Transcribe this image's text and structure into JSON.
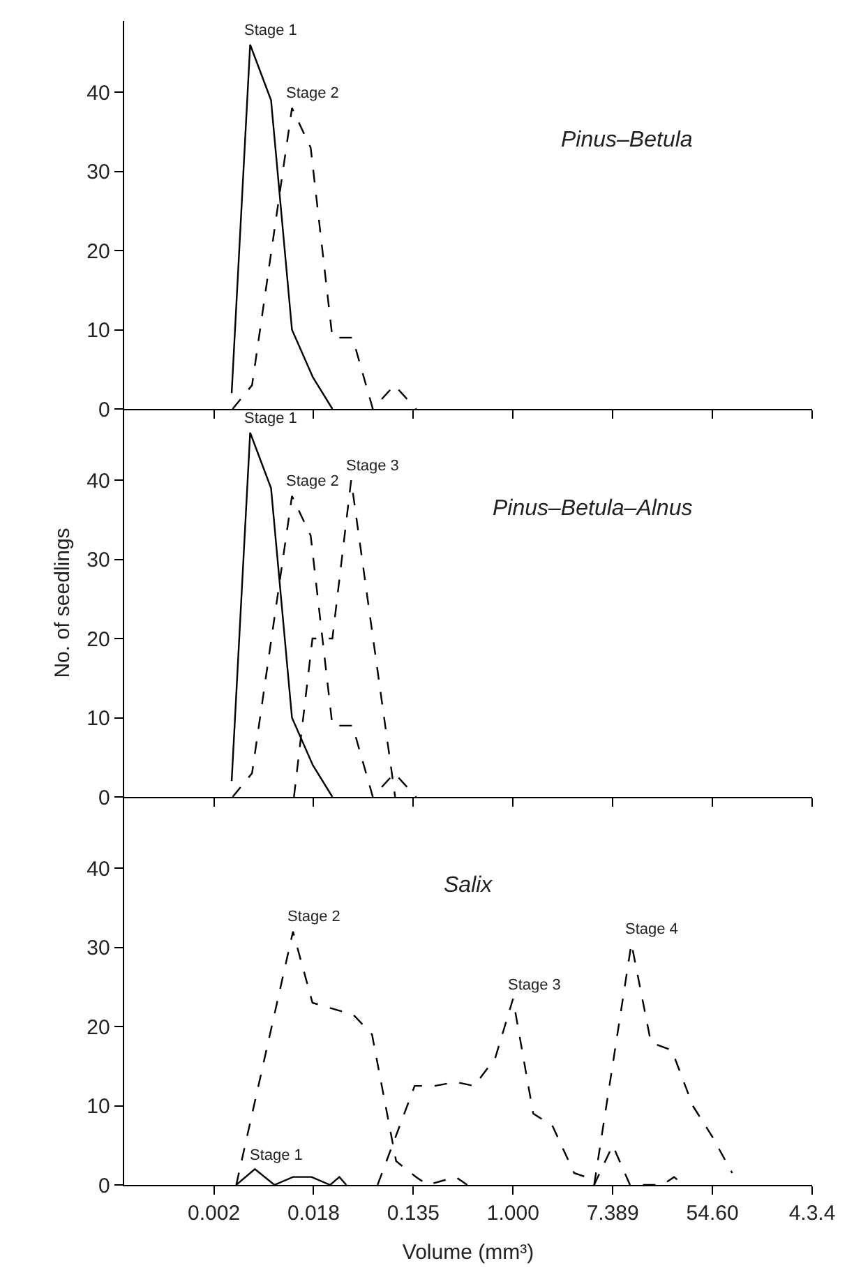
{
  "chart_data": [
    {
      "type": "line",
      "log": "x",
      "xlim": [
        0.00041,
        403.4
      ],
      "ylim": [
        0,
        49
      ],
      "tick_labels": "y",
      "xticks": [
        {
          "value": 0.00248,
          "label": null
        },
        {
          "value": 0.0183,
          "label": null
        },
        {
          "value": 0.1353,
          "label": null
        },
        {
          "value": 1,
          "label": null
        },
        {
          "value": 7.389,
          "label": null
        },
        {
          "value": 54.6,
          "label": null
        },
        {
          "value": 403.4,
          "label": null
        }
      ],
      "yticks": [
        0,
        10,
        20,
        30,
        40
      ],
      "series": [
        {
          "color": "#000000",
          "line_style": "solid",
          "x": [
            0.00354,
            0.00513,
            0.0078,
            0.01187,
            0.01806,
            0.0267
          ],
          "values": [
            2,
            46,
            39,
            10,
            4,
            0
          ]
        },
        {
          "color": "#000000",
          "line_style": "dashed",
          "x": [
            0.00361,
            0.00533,
            0.01187,
            0.01727,
            0.0267,
            0.04,
            0.0601,
            0.0926,
            0.1431
          ],
          "values": [
            0,
            3,
            38,
            33,
            9,
            9,
            0,
            3,
            0
          ]
        }
      ],
      "annotations": [
        {
          "text": "Stage 1",
          "x": 0.00513,
          "y": 46
        },
        {
          "text": "Stage 2",
          "x": 0.01187,
          "y": 38
        },
        "Pinus–Betula"
      ]
    },
    {
      "type": "line",
      "log": "x",
      "xlim": [
        0.00041,
        403.4
      ],
      "ylim": [
        0,
        49
      ],
      "tick_labels": "y",
      "ylabel": "No. of seedlings",
      "xticks": [
        {
          "value": 0.00248,
          "label": null
        },
        {
          "value": 0.0183,
          "label": null
        },
        {
          "value": 0.1353,
          "label": null
        },
        {
          "value": 1,
          "label": null
        },
        {
          "value": 7.389,
          "label": null
        },
        {
          "value": 54.6,
          "label": null
        },
        {
          "value": 403.4,
          "label": null
        }
      ],
      "yticks": [
        0,
        10,
        20,
        30,
        40
      ],
      "series": [
        {
          "color": "#000000",
          "line_style": "solid",
          "x": [
            0.00354,
            0.00513,
            0.0078,
            0.01187,
            0.01806,
            0.0267
          ],
          "values": [
            2,
            46,
            39,
            10,
            4,
            0
          ]
        },
        {
          "color": "#000000",
          "line_style": "dashed",
          "x": [
            0.00361,
            0.00533,
            0.01187,
            0.01727,
            0.0267,
            0.04,
            0.0601,
            0.0926,
            0.1431
          ],
          "values": [
            0,
            3,
            38,
            33,
            9,
            9,
            0,
            3,
            0
          ]
        },
        {
          "color": "#000000",
          "line_style": "dashed",
          "x": [
            0.01235,
            0.0179,
            0.0267,
            0.0389,
            0.0591,
            0.094
          ],
          "values": [
            0,
            20,
            20,
            40,
            21,
            0
          ]
        }
      ],
      "annotations": [
        {
          "text": "Stage 1",
          "x": 0.00513,
          "y": 46
        },
        {
          "text": "Stage 2",
          "x": 0.01187,
          "y": 38
        },
        {
          "text": "Stage 3",
          "x": 0.0389,
          "y": 40
        },
        "Pinus–Betula–Alnus"
      ]
    },
    {
      "type": "line",
      "log": "x",
      "xlim": [
        0.00041,
        403.4
      ],
      "ylim": [
        0,
        49
      ],
      "xlabel": "Volume (mm³)",
      "xticks": [
        {
          "value": 0.00248,
          "label": "0.002"
        },
        {
          "value": 0.0183,
          "label": "0.018"
        },
        {
          "value": 0.1353,
          "label": "0.135"
        },
        {
          "value": 1,
          "label": "1.000"
        },
        {
          "value": 7.389,
          "label": "7.389"
        },
        {
          "value": 54.6,
          "label": "54.60"
        },
        {
          "value": 403.4,
          "label": "4.3.4"
        }
      ],
      "yticks": [
        0,
        10,
        20,
        30,
        40
      ],
      "series": [
        {
          "color": "#000000",
          "line_style": "solid",
          "x": [
            0.00388,
            0.00564,
            0.00835,
            0.01211,
            0.01757,
            0.0255,
            0.0307,
            0.0353
          ],
          "values": [
            0,
            2,
            0,
            1,
            1,
            0,
            1,
            0
          ]
        },
        {
          "color": "#000000",
          "line_style": "dashed",
          "x": [
            0.00388,
            0.01211,
            0.0179,
            0.0406,
            0.0591,
            0.0959,
            0.1431,
            0.181,
            0.3166,
            0.399
          ],
          "values": [
            0,
            32,
            23,
            21.5,
            19,
            3,
            1,
            0,
            1,
            0
          ]
        },
        {
          "color": "#000000",
          "line_style": "dashed",
          "x": [
            0.0661,
            0.139,
            0.208,
            0.3166,
            0.459,
            0.699,
            1,
            1.5,
            2.2,
            3.41,
            4.31,
            5.09,
            7.389,
            10.45,
            20.1,
            25.3,
            30.5
          ],
          "values": [
            0,
            12.5,
            12.5,
            13,
            12.5,
            16,
            23.5,
            9,
            7.5,
            1.5,
            1,
            0,
            5,
            0,
            0,
            1,
            0
          ]
        },
        {
          "color": "#000000",
          "line_style": "dashed",
          "x": [
            5.09,
            10.75,
            15.9,
            24.2,
            36.8,
            54.9,
            81.2
          ],
          "values": [
            0,
            30.5,
            18,
            17,
            10,
            6,
            1.5
          ]
        }
      ],
      "annotations": [
        {
          "text": "Stage 1",
          "x": 0.00564,
          "y": 2
        },
        {
          "text": "Stage 2",
          "x": 0.01211,
          "y": 32
        },
        {
          "text": "Stage 3",
          "x": 1,
          "y": 23.5
        },
        {
          "text": "Stage 4",
          "x": 10.75,
          "y": 30.5
        },
        "Salix"
      ]
    }
  ]
}
